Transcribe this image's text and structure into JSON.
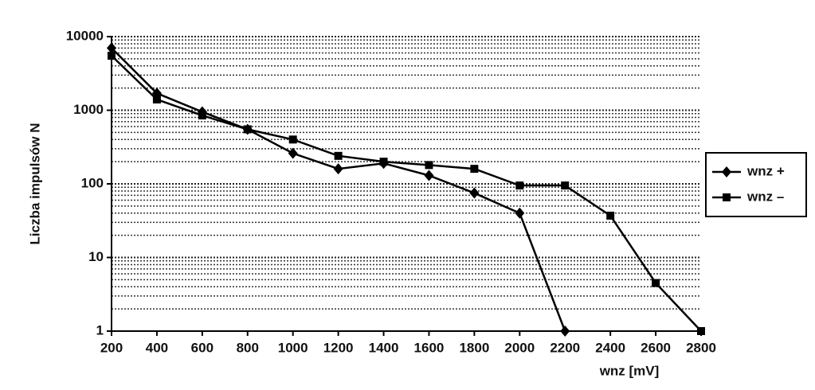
{
  "chart_data": {
    "type": "line",
    "y_label": "Liczba impulsów N",
    "x_label": "wnz [mV]",
    "x": [
      200,
      400,
      600,
      800,
      1000,
      1200,
      1400,
      1600,
      1800,
      2000,
      2200,
      2400,
      2600,
      2800
    ],
    "series": [
      {
        "name": "wnz +",
        "color": "#000000",
        "marker": "diamond",
        "values": [
          7000,
          1700,
          950,
          550,
          260,
          160,
          190,
          130,
          75,
          40,
          1,
          null,
          null,
          null
        ]
      },
      {
        "name": "wnz –",
        "color": "#000000",
        "marker": "square",
        "values": [
          5500,
          1400,
          850,
          550,
          400,
          240,
          200,
          180,
          160,
          95,
          95,
          37,
          4.5,
          1
        ]
      }
    ],
    "xlim": [
      200,
      2800
    ],
    "xticks": [
      200,
      400,
      600,
      800,
      1000,
      1200,
      1400,
      1600,
      1800,
      2000,
      2200,
      2400,
      2600,
      2800
    ],
    "ylim": [
      1,
      10000
    ],
    "yticks": [
      1,
      10,
      100,
      1000,
      10000
    ],
    "y_log": true,
    "grid": true,
    "minor_grid": true,
    "legend": "right"
  }
}
